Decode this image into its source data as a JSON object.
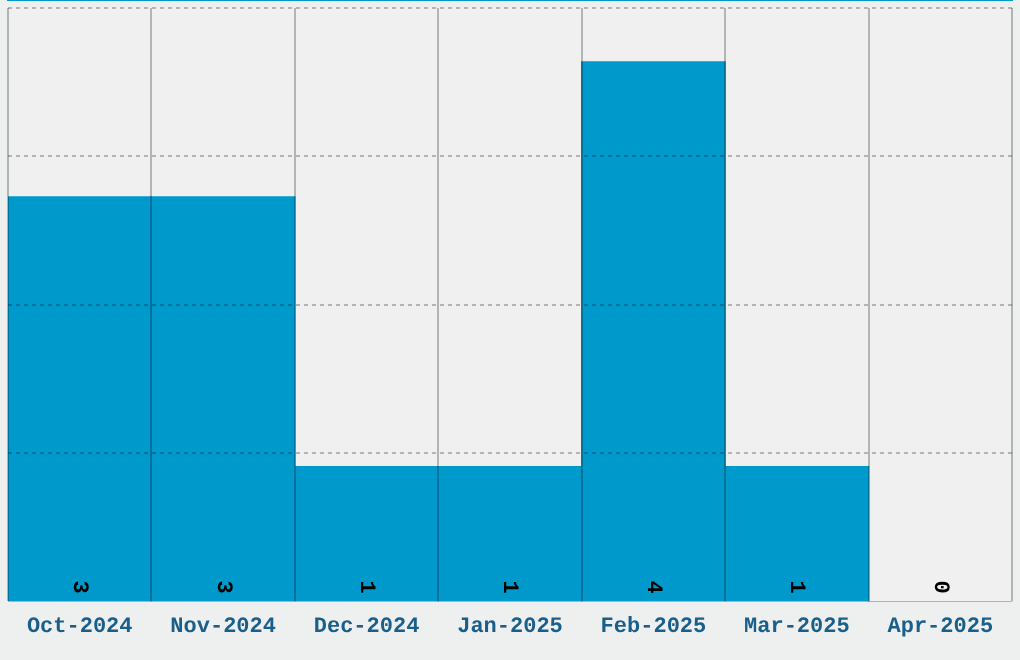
{
  "chart_data": {
    "type": "bar",
    "categories": [
      "Oct-2024",
      "Nov-2024",
      "Dec-2024",
      "Jan-2025",
      "Feb-2025",
      "Mar-2025",
      "Apr-2025"
    ],
    "values": [
      3,
      3,
      1,
      1,
      4,
      1,
      0
    ],
    "color": "#0099cc",
    "ylim": [
      0,
      4.4
    ],
    "yticks": [
      {
        "value": 1.1,
        "label": null
      },
      {
        "value": 2.2,
        "label": null
      },
      {
        "value": 3.3,
        "label": null
      },
      {
        "value": 4.4,
        "label": null
      }
    ],
    "grid": true,
    "data_labels": true,
    "tick_labels": "x"
  }
}
